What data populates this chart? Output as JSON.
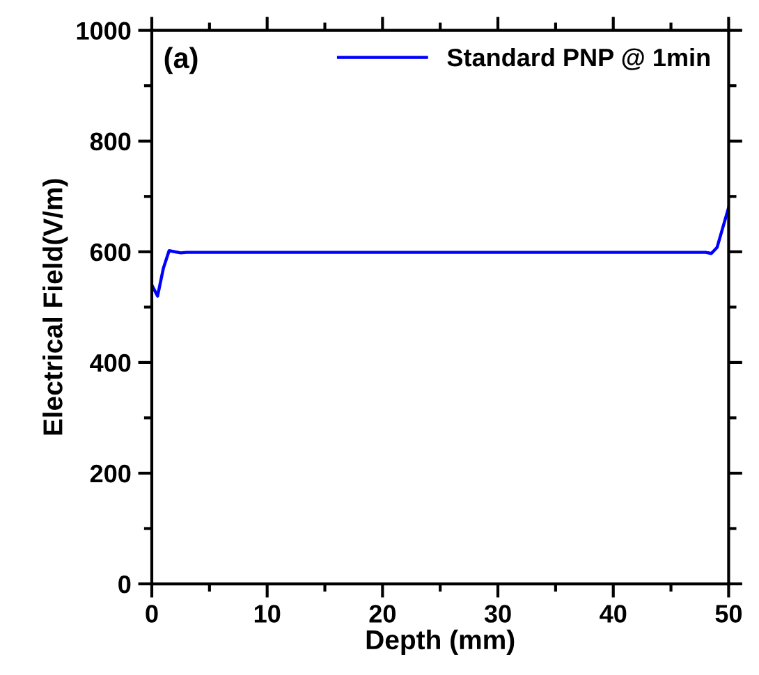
{
  "chart_data": {
    "type": "line",
    "xlabel": "Depth (mm)",
    "ylabel": "Electrical Field(V/m)",
    "annotations": [
      "(a)"
    ],
    "x": [
      0,
      0.5,
      1,
      1.5,
      2.5,
      3,
      10,
      20,
      30,
      40,
      48,
      48.5,
      49,
      50
    ],
    "series": [
      {
        "name": "Standard PNP @ 1min",
        "color": "#0000ff",
        "values": [
          540,
          520,
          570,
          602,
          598,
          599,
          599,
          599,
          599,
          599,
          599,
          597,
          608,
          680
        ]
      }
    ],
    "xlim": [
      0,
      50
    ],
    "xticks": [
      0,
      10,
      20,
      30,
      40,
      50
    ],
    "ylim": [
      0,
      1000
    ],
    "yticks": [
      0,
      200,
      400,
      600,
      800,
      1000
    ],
    "grid": false,
    "legend": "top right",
    "marker": "none",
    "line_style": "solid"
  }
}
